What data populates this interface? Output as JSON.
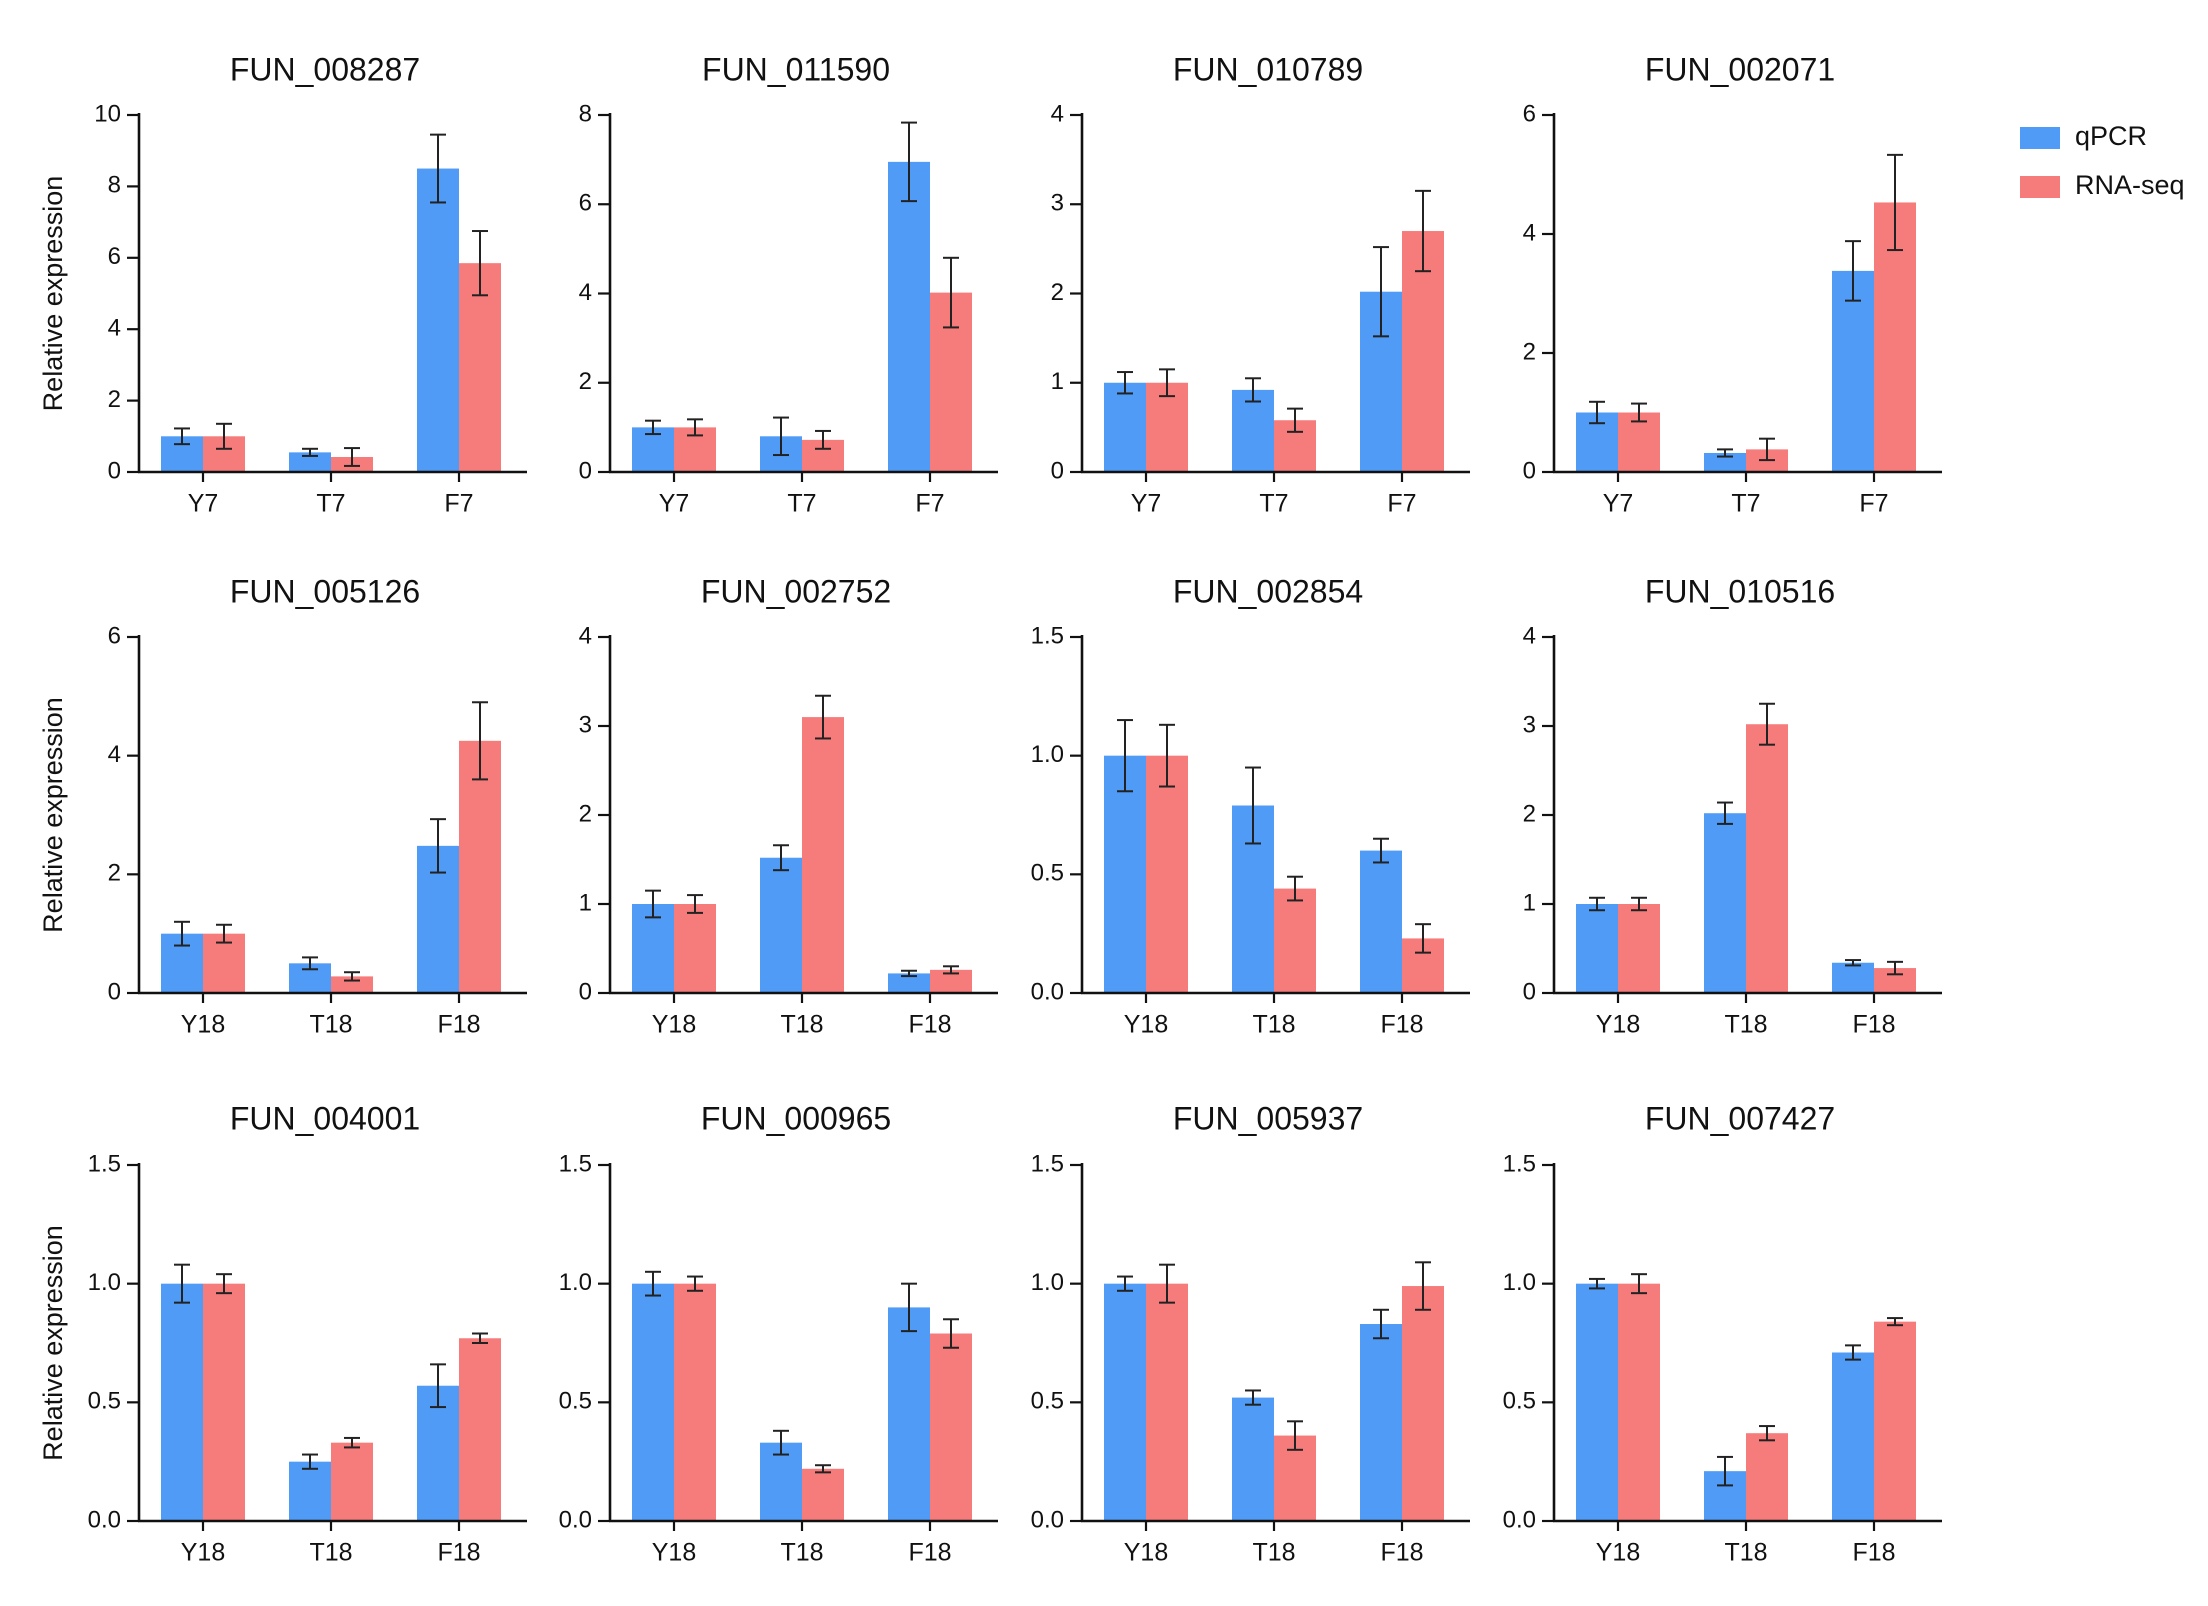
{
  "legend": [
    {
      "label": "qPCR",
      "color": "#4f9bf5"
    },
    {
      "label": "RNA-seq",
      "color": "#f67c7c"
    }
  ],
  "ylabel": "Relative expression",
  "chart_data": [
    {
      "type": "bar",
      "title": "FUN_008287",
      "categories": [
        "Y7",
        "T7",
        "F7"
      ],
      "ylim": [
        0,
        10
      ],
      "yticks": [
        "0",
        "2",
        "4",
        "6",
        "8",
        "10"
      ],
      "ylabel": "Relative expression",
      "series": [
        {
          "name": "qPCR",
          "values": [
            1.0,
            0.55,
            8.5
          ],
          "errors": [
            0.22,
            0.1,
            0.95
          ]
        },
        {
          "name": "RNA-seq",
          "values": [
            1.0,
            0.42,
            5.85
          ],
          "errors": [
            0.35,
            0.25,
            0.9
          ]
        }
      ]
    },
    {
      "type": "bar",
      "title": "FUN_011590",
      "categories": [
        "Y7",
        "T7",
        "F7"
      ],
      "ylim": [
        0,
        8
      ],
      "yticks": [
        "0",
        "2",
        "4",
        "6",
        "8"
      ],
      "ylabel": "",
      "series": [
        {
          "name": "qPCR",
          "values": [
            1.0,
            0.8,
            6.95
          ],
          "errors": [
            0.15,
            0.42,
            0.88
          ]
        },
        {
          "name": "RNA-seq",
          "values": [
            1.0,
            0.72,
            4.02
          ],
          "errors": [
            0.18,
            0.2,
            0.78
          ]
        }
      ]
    },
    {
      "type": "bar",
      "title": "FUN_010789",
      "categories": [
        "Y7",
        "T7",
        "F7"
      ],
      "ylim": [
        0,
        4
      ],
      "yticks": [
        "0",
        "1",
        "2",
        "3",
        "4"
      ],
      "ylabel": "",
      "series": [
        {
          "name": "qPCR",
          "values": [
            1.0,
            0.92,
            2.02
          ],
          "errors": [
            0.12,
            0.13,
            0.5
          ]
        },
        {
          "name": "RNA-seq",
          "values": [
            1.0,
            0.58,
            2.7
          ],
          "errors": [
            0.15,
            0.13,
            0.45
          ]
        }
      ]
    },
    {
      "type": "bar",
      "title": "FUN_002071",
      "categories": [
        "Y7",
        "T7",
        "F7"
      ],
      "ylim": [
        0,
        6
      ],
      "yticks": [
        "0",
        "2",
        "4",
        "6"
      ],
      "ylabel": "",
      "series": [
        {
          "name": "qPCR",
          "values": [
            1.0,
            0.32,
            3.38
          ],
          "errors": [
            0.18,
            0.06,
            0.5
          ]
        },
        {
          "name": "RNA-seq",
          "values": [
            1.0,
            0.38,
            4.53
          ],
          "errors": [
            0.15,
            0.18,
            0.8
          ]
        }
      ]
    },
    {
      "type": "bar",
      "title": "FUN_005126",
      "categories": [
        "Y18",
        "T18",
        "F18"
      ],
      "ylim": [
        0,
        6
      ],
      "yticks": [
        "0",
        "2",
        "4",
        "6"
      ],
      "ylabel": "Relative expression",
      "series": [
        {
          "name": "qPCR",
          "values": [
            1.0,
            0.5,
            2.48
          ],
          "errors": [
            0.2,
            0.1,
            0.45
          ]
        },
        {
          "name": "RNA-seq",
          "values": [
            1.0,
            0.28,
            4.25
          ],
          "errors": [
            0.15,
            0.07,
            0.65
          ]
        }
      ]
    },
    {
      "type": "bar",
      "title": "FUN_002752",
      "categories": [
        "Y18",
        "T18",
        "F18"
      ],
      "ylim": [
        0,
        4
      ],
      "yticks": [
        "0",
        "1",
        "2",
        "3",
        "4"
      ],
      "ylabel": "",
      "series": [
        {
          "name": "qPCR",
          "values": [
            1.0,
            1.52,
            0.22
          ],
          "errors": [
            0.15,
            0.14,
            0.03
          ]
        },
        {
          "name": "RNA-seq",
          "values": [
            1.0,
            3.1,
            0.26
          ],
          "errors": [
            0.1,
            0.24,
            0.04
          ]
        }
      ]
    },
    {
      "type": "bar",
      "title": "FUN_002854",
      "categories": [
        "Y18",
        "T18",
        "F18"
      ],
      "ylim": [
        0,
        1.5
      ],
      "yticks": [
        "0.0",
        "0.5",
        "1.0",
        "1.5"
      ],
      "ylabel": "",
      "series": [
        {
          "name": "qPCR",
          "values": [
            1.0,
            0.79,
            0.6
          ],
          "errors": [
            0.15,
            0.16,
            0.05
          ]
        },
        {
          "name": "RNA-seq",
          "values": [
            1.0,
            0.44,
            0.23
          ],
          "errors": [
            0.13,
            0.05,
            0.06
          ]
        }
      ]
    },
    {
      "type": "bar",
      "title": "FUN_010516",
      "categories": [
        "Y18",
        "T18",
        "F18"
      ],
      "ylim": [
        0,
        4
      ],
      "yticks": [
        "0",
        "1",
        "2",
        "3",
        "4"
      ],
      "ylabel": "",
      "series": [
        {
          "name": "qPCR",
          "values": [
            1.0,
            2.02,
            0.34
          ],
          "errors": [
            0.07,
            0.12,
            0.03
          ]
        },
        {
          "name": "RNA-seq",
          "values": [
            1.0,
            3.02,
            0.28
          ],
          "errors": [
            0.07,
            0.23,
            0.07
          ]
        }
      ]
    },
    {
      "type": "bar",
      "title": "FUN_004001",
      "categories": [
        "Y18",
        "T18",
        "F18"
      ],
      "ylim": [
        0,
        1.5
      ],
      "yticks": [
        "0.0",
        "0.5",
        "1.0",
        "1.5"
      ],
      "ylabel": "Relative expression",
      "series": [
        {
          "name": "qPCR",
          "values": [
            1.0,
            0.25,
            0.57
          ],
          "errors": [
            0.08,
            0.03,
            0.09
          ]
        },
        {
          "name": "RNA-seq",
          "values": [
            1.0,
            0.33,
            0.77
          ],
          "errors": [
            0.04,
            0.02,
            0.02
          ]
        }
      ]
    },
    {
      "type": "bar",
      "title": "FUN_000965",
      "categories": [
        "Y18",
        "T18",
        "F18"
      ],
      "ylim": [
        0,
        1.5
      ],
      "yticks": [
        "0.0",
        "0.5",
        "1.0",
        "1.5"
      ],
      "ylabel": "",
      "series": [
        {
          "name": "qPCR",
          "values": [
            1.0,
            0.33,
            0.9
          ],
          "errors": [
            0.05,
            0.05,
            0.1
          ]
        },
        {
          "name": "RNA-seq",
          "values": [
            1.0,
            0.22,
            0.79
          ],
          "errors": [
            0.03,
            0.015,
            0.06
          ]
        }
      ]
    },
    {
      "type": "bar",
      "title": "FUN_005937",
      "categories": [
        "Y18",
        "T18",
        "F18"
      ],
      "ylim": [
        0,
        1.5
      ],
      "yticks": [
        "0.0",
        "0.5",
        "1.0",
        "1.5"
      ],
      "ylabel": "",
      "series": [
        {
          "name": "qPCR",
          "values": [
            1.0,
            0.52,
            0.83
          ],
          "errors": [
            0.03,
            0.03,
            0.06
          ]
        },
        {
          "name": "RNA-seq",
          "values": [
            1.0,
            0.36,
            0.99
          ],
          "errors": [
            0.08,
            0.06,
            0.1
          ]
        }
      ]
    },
    {
      "type": "bar",
      "title": "FUN_007427",
      "categories": [
        "Y18",
        "T18",
        "F18"
      ],
      "ylim": [
        0,
        1.5
      ],
      "yticks": [
        "0.0",
        "0.5",
        "1.0",
        "1.5"
      ],
      "ylabel": "",
      "series": [
        {
          "name": "qPCR",
          "values": [
            1.0,
            0.21,
            0.71
          ],
          "errors": [
            0.02,
            0.06,
            0.03
          ]
        },
        {
          "name": "RNA-seq",
          "values": [
            1.0,
            0.37,
            0.84
          ],
          "errors": [
            0.04,
            0.03,
            0.015
          ]
        }
      ]
    }
  ]
}
